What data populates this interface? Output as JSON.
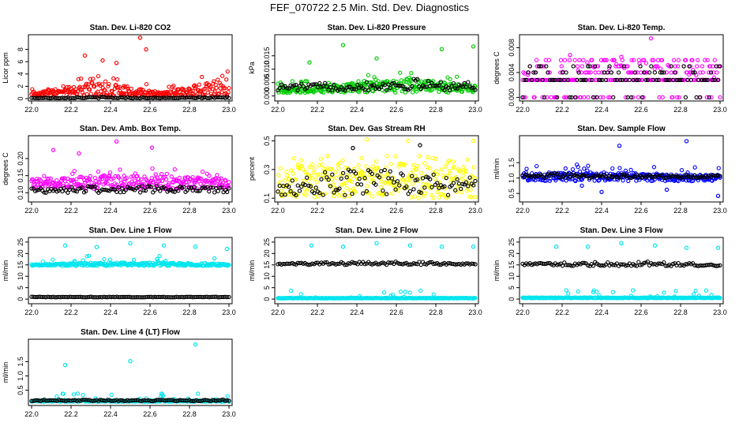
{
  "figure": {
    "title": "FEF_070722  2.5 Min. Std. Dev. Diagnostics"
  },
  "chart_data": [
    {
      "type": "scatter",
      "title": "Stan. Dev. Li-820 CO2",
      "xlabel": "",
      "ylabel": "Licor ppm",
      "xlim": [
        22.0,
        23.0
      ],
      "ylim": [
        0,
        10
      ],
      "xticks": [
        "22.0",
        "22.2",
        "22.4",
        "22.6",
        "22.8",
        "23.0"
      ],
      "yticks": [
        {
          "v": 0,
          "t": "0"
        },
        {
          "v": 2,
          "t": "2"
        },
        {
          "v": 4,
          "t": "4"
        },
        {
          "v": 6,
          "t": "6"
        },
        {
          "v": 8,
          "t": "8"
        }
      ],
      "series": [
        {
          "name": "grey",
          "color": "#ff0000",
          "band": [
            0.9,
            2.8,
            1.0,
            3.5
          ],
          "lowTail": 0.4,
          "outliers": [
            [
              22.55,
              9.9
            ],
            [
              22.58,
              8.0
            ],
            [
              22.27,
              7.0
            ],
            [
              22.36,
              6.2
            ],
            [
              22.43,
              5.8
            ]
          ]
        },
        {
          "name": "black",
          "color": "#000000",
          "band": [
            0.15,
            0.3,
            0.15,
            0.3
          ],
          "lowTail": 0.05,
          "outliers": []
        }
      ]
    },
    {
      "type": "scatter",
      "title": "Stan. Dev. Li-820 Pressure",
      "xlabel": "",
      "ylabel": "kPa",
      "xlim": [
        22.0,
        23.0
      ],
      "ylim": [
        -0.001,
        0.022
      ],
      "xticks": [
        "22.0",
        "22.2",
        "22.4",
        "22.6",
        "22.8",
        "23.0"
      ],
      "yticks": [
        {
          "v": 0,
          "t": "0.000"
        },
        {
          "v": 0.005,
          "t": "0.005"
        },
        {
          "v": 0.01,
          "t": "0.010"
        },
        {
          "v": 0.015,
          "t": "0.015"
        }
      ],
      "series": [
        {
          "name": "grey",
          "color": "#00cc00",
          "band": [
            0.003,
            0.0045,
            0.0065,
            0.004
          ],
          "lowTail": 0.0012,
          "outliers": [
            [
              22.16,
              0.0125
            ],
            [
              22.33,
              0.019
            ],
            [
              22.5,
              0.014
            ],
            [
              22.83,
              0.0175
            ],
            [
              22.99,
              0.0185
            ],
            [
              22.14,
              0.0055
            ]
          ]
        },
        {
          "name": "black",
          "color": "#000000",
          "band": [
            0.0045,
            0.005,
            0.0065,
            0.005
          ],
          "lowTail": 0.002,
          "outliers": []
        }
      ]
    },
    {
      "type": "scatter",
      "title": "Stan. Dev. Li-820 Temp.",
      "xlabel": "",
      "ylabel": "degrees C",
      "xlim": [
        22.0,
        23.0
      ],
      "ylim": [
        -0.0002,
        0.0097
      ],
      "xticks": [
        "22.0",
        "22.2",
        "22.4",
        "22.6",
        "22.8",
        "23.0"
      ],
      "yticks": [
        {
          "v": 0,
          "t": "0.000"
        },
        {
          "v": 0.004,
          "t": "0.004"
        },
        {
          "v": 0.008,
          "t": "0.008"
        }
      ],
      "series": [
        {
          "name": "grey",
          "color": "#ff00ff",
          "band": [
            0.0028,
            0.0045,
            0.0045,
            0.0028
          ],
          "lowTail": 0.0,
          "levels": [
            0,
            0.0028,
            0.004,
            0.005,
            0.006
          ],
          "outliers": [
            [
              22.65,
              0.0095
            ],
            [
              22.24,
              0.0068
            ],
            [
              22.5,
              0.0065
            ]
          ]
        },
        {
          "name": "black",
          "color": "#000000",
          "band": [
            0.0028,
            0.004,
            0.004,
            0.0028
          ],
          "lowTail": 0.0,
          "levels": [
            0,
            0.0028,
            0.004,
            0.005
          ],
          "outliers": []
        }
      ]
    },
    {
      "type": "scatter",
      "title": "Stan. Dev. Amb. Box Temp.",
      "xlabel": "",
      "ylabel": "degrees C",
      "xlim": [
        22.0,
        23.0
      ],
      "ylim": [
        0.08,
        0.26
      ],
      "xticks": [
        "22.0",
        "22.2",
        "22.4",
        "22.6",
        "22.8",
        "23.0"
      ],
      "yticks": [
        {
          "v": 0.1,
          "t": "0.10"
        },
        {
          "v": 0.15,
          "t": "0.15"
        },
        {
          "v": 0.2,
          "t": "0.20"
        }
      ],
      "series": [
        {
          "name": "grey",
          "color": "#ff00ff",
          "band": [
            0.14,
            0.15,
            0.15,
            0.14
          ],
          "lowTail": 0.11,
          "outliers": [
            [
              22.43,
              0.25
            ],
            [
              22.11,
              0.225
            ],
            [
              22.61,
              0.232
            ],
            [
              22.24,
              0.215
            ]
          ]
        },
        {
          "name": "black",
          "color": "#000000",
          "band": [
            0.115,
            0.12,
            0.12,
            0.115
          ],
          "lowTail": 0.1,
          "outliers": []
        }
      ]
    },
    {
      "type": "scatter",
      "title": "Stan. Dev. Gas Stream RH",
      "xlabel": "",
      "ylabel": "percent",
      "xlim": [
        22.0,
        23.0
      ],
      "ylim": [
        0.09,
        0.52
      ],
      "xticks": [
        "22.0",
        "22.2",
        "22.4",
        "22.6",
        "22.8",
        "23.0"
      ],
      "yticks": [
        {
          "v": 0.1,
          "t": "0.1"
        },
        {
          "v": 0.3,
          "t": "0.3"
        },
        {
          "v": 0.5,
          "t": "0.5"
        }
      ],
      "series": [
        {
          "name": "grey",
          "color": "#ffff00",
          "band": [
            0.33,
            0.35,
            0.35,
            0.33
          ],
          "lowTail": 0.1,
          "outliers": [
            [
              22.45,
              0.51
            ],
            [
              22.66,
              0.5
            ],
            [
              22.99,
              0.5
            ]
          ]
        },
        {
          "name": "black",
          "color": "#000000",
          "band": [
            0.25,
            0.3,
            0.3,
            0.25
          ],
          "lowTail": 0.12,
          "outliers": [
            [
              22.38,
              0.45
            ],
            [
              22.72,
              0.47
            ]
          ]
        }
      ]
    },
    {
      "type": "scatter",
      "title": "Stan. Dev. Sample Flow",
      "xlabel": "",
      "ylabel": "ml/min",
      "xlim": [
        22.0,
        23.0
      ],
      "ylim": [
        0.3,
        2.3
      ],
      "xticks": [
        "22.0",
        "22.2",
        "22.4",
        "22.6",
        "22.8",
        "23.0"
      ],
      "yticks": [
        {
          "v": 0.5,
          "t": "0.5"
        },
        {
          "v": 1.0,
          "t": "1.0"
        },
        {
          "v": 1.5,
          "t": "1.5"
        }
      ],
      "series": [
        {
          "name": "grey",
          "color": "#0000ff",
          "band": [
            1.2,
            1.2,
            1.15,
            1.1
          ],
          "lowTail": 0.9,
          "outliers": [
            [
              22.83,
              2.2
            ],
            [
              22.49,
              2.05
            ],
            [
              22.99,
              0.42
            ],
            [
              22.4,
              0.55
            ],
            [
              22.73,
              0.62
            ],
            [
              22.3,
              0.75
            ]
          ]
        },
        {
          "name": "black",
          "color": "#000000",
          "band": [
            1.15,
            1.15,
            1.1,
            1.1
          ],
          "lowTail": 1.0,
          "outliers": []
        }
      ]
    },
    {
      "type": "scatter",
      "title": "Stan. Dev. Line 1 Flow",
      "xlabel": "",
      "ylabel": "ml/min",
      "xlim": [
        22.0,
        23.0
      ],
      "ylim": [
        -1,
        26
      ],
      "xticks": [
        "22.0",
        "22.2",
        "22.4",
        "22.6",
        "22.8",
        "23.0"
      ],
      "yticks": [
        {
          "v": 0,
          "t": "0"
        },
        {
          "v": 5,
          "t": "5"
        },
        {
          "v": 10,
          "t": "10"
        },
        {
          "v": 15,
          "t": "15"
        },
        {
          "v": 20,
          "t": "20"
        },
        {
          "v": 25,
          "t": "25"
        }
      ],
      "series": [
        {
          "name": "grey",
          "color": "#00e5ee",
          "band": [
            15.3,
            16.0,
            16.0,
            15.5
          ],
          "lowTail": 14.6,
          "outliers": [
            [
              22.17,
              23.5
            ],
            [
              22.33,
              22.8
            ],
            [
              22.5,
              24.5
            ],
            [
              22.67,
              23.5
            ],
            [
              22.83,
              23.0
            ],
            [
              22.99,
              22.0
            ]
          ]
        },
        {
          "name": "black",
          "color": "#000000",
          "band": [
            1.0,
            1.0,
            1.0,
            1.0
          ],
          "lowTail": 0.8,
          "outliers": []
        }
      ]
    },
    {
      "type": "scatter",
      "title": "Stan. Dev. Line 2 Flow",
      "xlabel": "",
      "ylabel": "ml/min",
      "xlim": [
        22.0,
        23.0
      ],
      "ylim": [
        -1,
        26
      ],
      "xticks": [
        "22.0",
        "22.2",
        "22.4",
        "22.6",
        "22.8",
        "23.0"
      ],
      "yticks": [
        {
          "v": 0,
          "t": "0"
        },
        {
          "v": 5,
          "t": "5"
        },
        {
          "v": 10,
          "t": "10"
        },
        {
          "v": 15,
          "t": "15"
        },
        {
          "v": 20,
          "t": "20"
        },
        {
          "v": 25,
          "t": "25"
        }
      ],
      "series": [
        {
          "name": "grey",
          "color": "#00e5ee",
          "band": [
            0.5,
            0.5,
            0.5,
            0.5
          ],
          "lowTail": 0.3,
          "outliers": [
            [
              22.17,
              23.5
            ],
            [
              22.33,
              23.0
            ],
            [
              22.5,
              24.5
            ],
            [
              22.67,
              23.5
            ],
            [
              22.83,
              23.0
            ],
            [
              22.99,
              23.0
            ]
          ]
        },
        {
          "name": "black",
          "color": "#000000",
          "band": [
            15.8,
            16.3,
            16.5,
            15.6
          ],
          "lowTail": 15.0,
          "outliers": []
        }
      ]
    },
    {
      "type": "scatter",
      "title": "Stan. Dev. Line 3 Flow",
      "xlabel": "",
      "ylabel": "ml/min",
      "xlim": [
        22.0,
        23.0
      ],
      "ylim": [
        -1,
        26
      ],
      "xticks": [
        "22.0",
        "22.2",
        "22.4",
        "22.6",
        "22.8",
        "23.0"
      ],
      "yticks": [
        {
          "v": 0,
          "t": "0"
        },
        {
          "v": 5,
          "t": "5"
        },
        {
          "v": 10,
          "t": "10"
        },
        {
          "v": 15,
          "t": "15"
        },
        {
          "v": 20,
          "t": "20"
        },
        {
          "v": 25,
          "t": "25"
        }
      ],
      "series": [
        {
          "name": "grey",
          "color": "#00e5ee",
          "band": [
            0.7,
            0.7,
            0.7,
            0.7
          ],
          "lowTail": 0.4,
          "outliers": [
            [
              22.17,
              23.0
            ],
            [
              22.33,
              23.0
            ],
            [
              22.5,
              24.5
            ],
            [
              22.67,
              23.5
            ],
            [
              22.83,
              22.5
            ],
            [
              22.99,
              22.5
            ]
          ]
        },
        {
          "name": "black",
          "color": "#000000",
          "band": [
            15.8,
            16.3,
            16.5,
            15.3
          ],
          "lowTail": 14.5,
          "outliers": []
        }
      ]
    },
    {
      "type": "scatter",
      "title": "Stan. Dev. Line 4 (LT) Flow",
      "xlabel": "",
      "ylabel": "ml/min",
      "xlim": [
        22.0,
        23.0
      ],
      "ylim": [
        0.05,
        2.2
      ],
      "xticks": [
        "22.0",
        "22.2",
        "22.4",
        "22.6",
        "22.8",
        "23.0"
      ],
      "yticks": [
        {
          "v": 0.5,
          "t": "0.5"
        },
        {
          "v": 1.0,
          "t": "1.0"
        },
        {
          "v": 1.5,
          "t": "1.5"
        }
      ],
      "series": [
        {
          "name": "grey",
          "color": "#00e5ee",
          "band": [
            0.15,
            0.15,
            0.15,
            0.15
          ],
          "lowTail": 0.1,
          "outliers": [
            [
              22.17,
              1.38
            ],
            [
              22.5,
              1.52
            ],
            [
              22.83,
              2.1
            ]
          ]
        },
        {
          "name": "black",
          "color": "#000000",
          "band": [
            0.17,
            0.17,
            0.17,
            0.17
          ],
          "lowTail": 0.12,
          "outliers": []
        }
      ]
    }
  ]
}
